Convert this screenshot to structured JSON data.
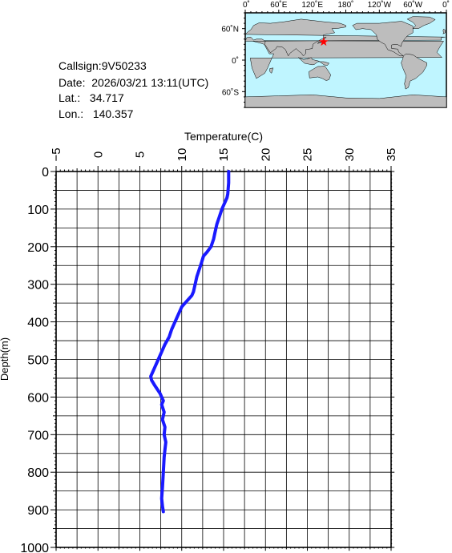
{
  "station": {
    "callsign_label": "Callsign:",
    "callsign": "9V50233",
    "date_label": "Date:",
    "date": "2026/03/21 13:11(UTC)",
    "lat_label": "Lat.:",
    "lat": "34.717",
    "lon_label": "Lon.:",
    "lon": "140.357"
  },
  "map": {
    "top_ticks": [
      "0˚",
      "60˚E",
      "120˚E",
      "180˚",
      "120˚W",
      "60˚W",
      "0˚"
    ],
    "lat_ticks": [
      "60˚N",
      "0˚",
      "60˚S"
    ],
    "colors": {
      "ocean": "#bff5ff",
      "land": "#bdbdbd",
      "marker": "#ff0000"
    },
    "marker_icon": "red-star-icon",
    "marker_lat": 34.717,
    "marker_lon": 140.357
  },
  "chart_data": {
    "type": "line",
    "xlabel": "Temperature(C)",
    "ylabel": "Depth(m)",
    "xlim": [
      -5,
      35
    ],
    "ylim": [
      1000,
      0
    ],
    "x_ticks": [
      -5,
      0,
      5,
      10,
      15,
      20,
      25,
      30,
      35
    ],
    "y_ticks": [
      0,
      100,
      200,
      300,
      400,
      500,
      600,
      700,
      800,
      900,
      1000
    ],
    "x_axis_position": "top",
    "grid": true,
    "line_color": "#1a1aff",
    "series": [
      {
        "x": [
          15.6,
          15.6,
          15.5,
          15.4,
          15.2,
          14.8,
          14.5,
          14.2,
          14.0,
          13.8,
          13.5,
          13.0,
          12.6,
          12.4,
          12.1,
          11.8,
          11.6,
          11.4,
          11.2,
          10.6,
          10.0,
          9.6,
          9.2,
          8.8,
          8.5,
          8.0,
          7.6,
          7.2,
          6.8,
          6.5,
          6.3,
          6.4,
          6.8,
          7.4,
          7.8,
          7.6,
          7.9,
          7.7,
          8.0,
          7.9,
          8.1,
          8.0,
          7.9,
          7.8,
          7.7,
          7.6,
          7.7,
          7.8
        ],
        "y": [
          0,
          30,
          60,
          70,
          80,
          100,
          120,
          140,
          160,
          180,
          200,
          215,
          225,
          240,
          260,
          280,
          300,
          320,
          330,
          345,
          360,
          380,
          400,
          420,
          440,
          460,
          480,
          500,
          520,
          535,
          545,
          555,
          570,
          590,
          610,
          620,
          640,
          660,
          680,
          700,
          720,
          740,
          760,
          800,
          840,
          870,
          890,
          905
        ]
      }
    ]
  }
}
